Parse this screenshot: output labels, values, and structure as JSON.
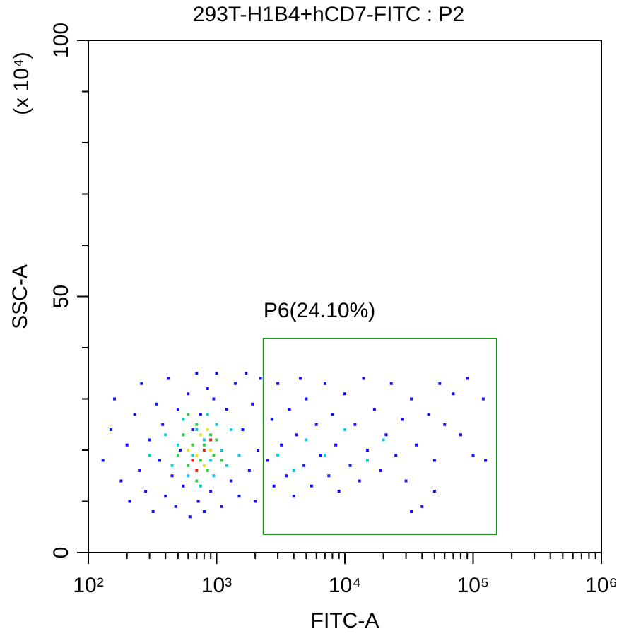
{
  "chart_data": {
    "type": "scatter",
    "title": "293T-H1B4+hCD7-FITC : P2",
    "x_label": "FITC-A",
    "y_label": "SSC-A",
    "y_multiplier": "(x 10⁴)",
    "xscale": "log",
    "xlim": [
      100,
      1000000
    ],
    "xticks": [
      {
        "value": 100,
        "label": "10²"
      },
      {
        "value": 1000,
        "label": "10³"
      },
      {
        "value": 10000,
        "label": "10⁴"
      },
      {
        "value": 100000,
        "label": "10⁵"
      },
      {
        "value": 1000000,
        "label": "10⁶"
      }
    ],
    "ylim": [
      0,
      100
    ],
    "yticks": [
      0,
      50,
      100
    ],
    "gate": {
      "label": "P6(24.10%)",
      "x": [
        2320,
        153000
      ],
      "y": [
        3.6,
        41.8
      ],
      "color": "#1a8a1a"
    },
    "series": [
      {
        "color": "#1010ff",
        "x": [
          130,
          150,
          160,
          180,
          200,
          210,
          230,
          250,
          260,
          280,
          300,
          320,
          340,
          360,
          380,
          400,
          420,
          450,
          480,
          500,
          520,
          550,
          600,
          620,
          650,
          700,
          720,
          750,
          800,
          850,
          900,
          950,
          1000,
          1100,
          1200,
          1300,
          1400,
          1500,
          1600,
          1700,
          1800,
          1900,
          2000,
          2100,
          2200,
          2500,
          2700,
          2800,
          3000,
          3200,
          3500,
          3700,
          4000,
          4200,
          4500,
          4800,
          5000,
          5500,
          6000,
          6500,
          7000,
          7500,
          8000,
          8500,
          9000,
          10000,
          11000,
          12000,
          13000,
          14000,
          15000,
          17000,
          19000,
          21000,
          23000,
          25000,
          28000,
          30000,
          33000,
          36000,
          40000,
          45000,
          50000,
          55000,
          60000,
          70000,
          80000,
          90000,
          100000,
          120000,
          125000,
          50000,
          33000
        ],
        "values": [
          18,
          24,
          30,
          14,
          21,
          10,
          27,
          16,
          33,
          12,
          22,
          8,
          29,
          18,
          25,
          11,
          34,
          15,
          9,
          28,
          20,
          13,
          31,
          7,
          24,
          35,
          10,
          27,
          8,
          32,
          12,
          30,
          35,
          9,
          28,
          14,
          33,
          11,
          24,
          35,
          16,
          29,
          10,
          20,
          34,
          18,
          26,
          13,
          33,
          21,
          15,
          28,
          11,
          23,
          34,
          17,
          30,
          13,
          25,
          19,
          33,
          15,
          27,
          21,
          12,
          31,
          17,
          25,
          14,
          34,
          20,
          28,
          16,
          23,
          33,
          19,
          26,
          14,
          30,
          21,
          9,
          27,
          18,
          33,
          25,
          31,
          23,
          34,
          19,
          30,
          18,
          12,
          8
        ]
      },
      {
        "color": "#10c8e0",
        "x": [
          300,
          400,
          450,
          500,
          550,
          600,
          650,
          700,
          750,
          800,
          850,
          900,
          950,
          1000,
          1100,
          1200,
          1300,
          1500,
          3000,
          4000,
          5000,
          7000,
          10000,
          15000,
          20000
        ],
        "values": [
          19,
          23,
          17,
          21,
          26,
          15,
          19,
          24,
          13,
          22,
          27,
          18,
          15,
          25,
          20,
          17,
          24,
          19,
          19,
          16,
          22,
          19,
          24,
          18,
          22
        ]
      },
      {
        "color": "#30d040",
        "x": [
          500,
          550,
          600,
          650,
          700,
          750,
          800,
          850,
          900,
          950,
          1000,
          1100,
          700,
          600
        ],
        "values": [
          19,
          23,
          17,
          21,
          25,
          18,
          21,
          16,
          23,
          19,
          22,
          18,
          14,
          27
        ]
      },
      {
        "color": "#e8e020",
        "x": [
          600,
          700,
          750,
          800,
          900,
          850
        ],
        "values": [
          20,
          19,
          23,
          17,
          20,
          24
        ]
      },
      {
        "color": "#e82010",
        "x": [
          650,
          800,
          900,
          700
        ],
        "values": [
          18,
          20,
          22,
          16
        ]
      }
    ]
  }
}
